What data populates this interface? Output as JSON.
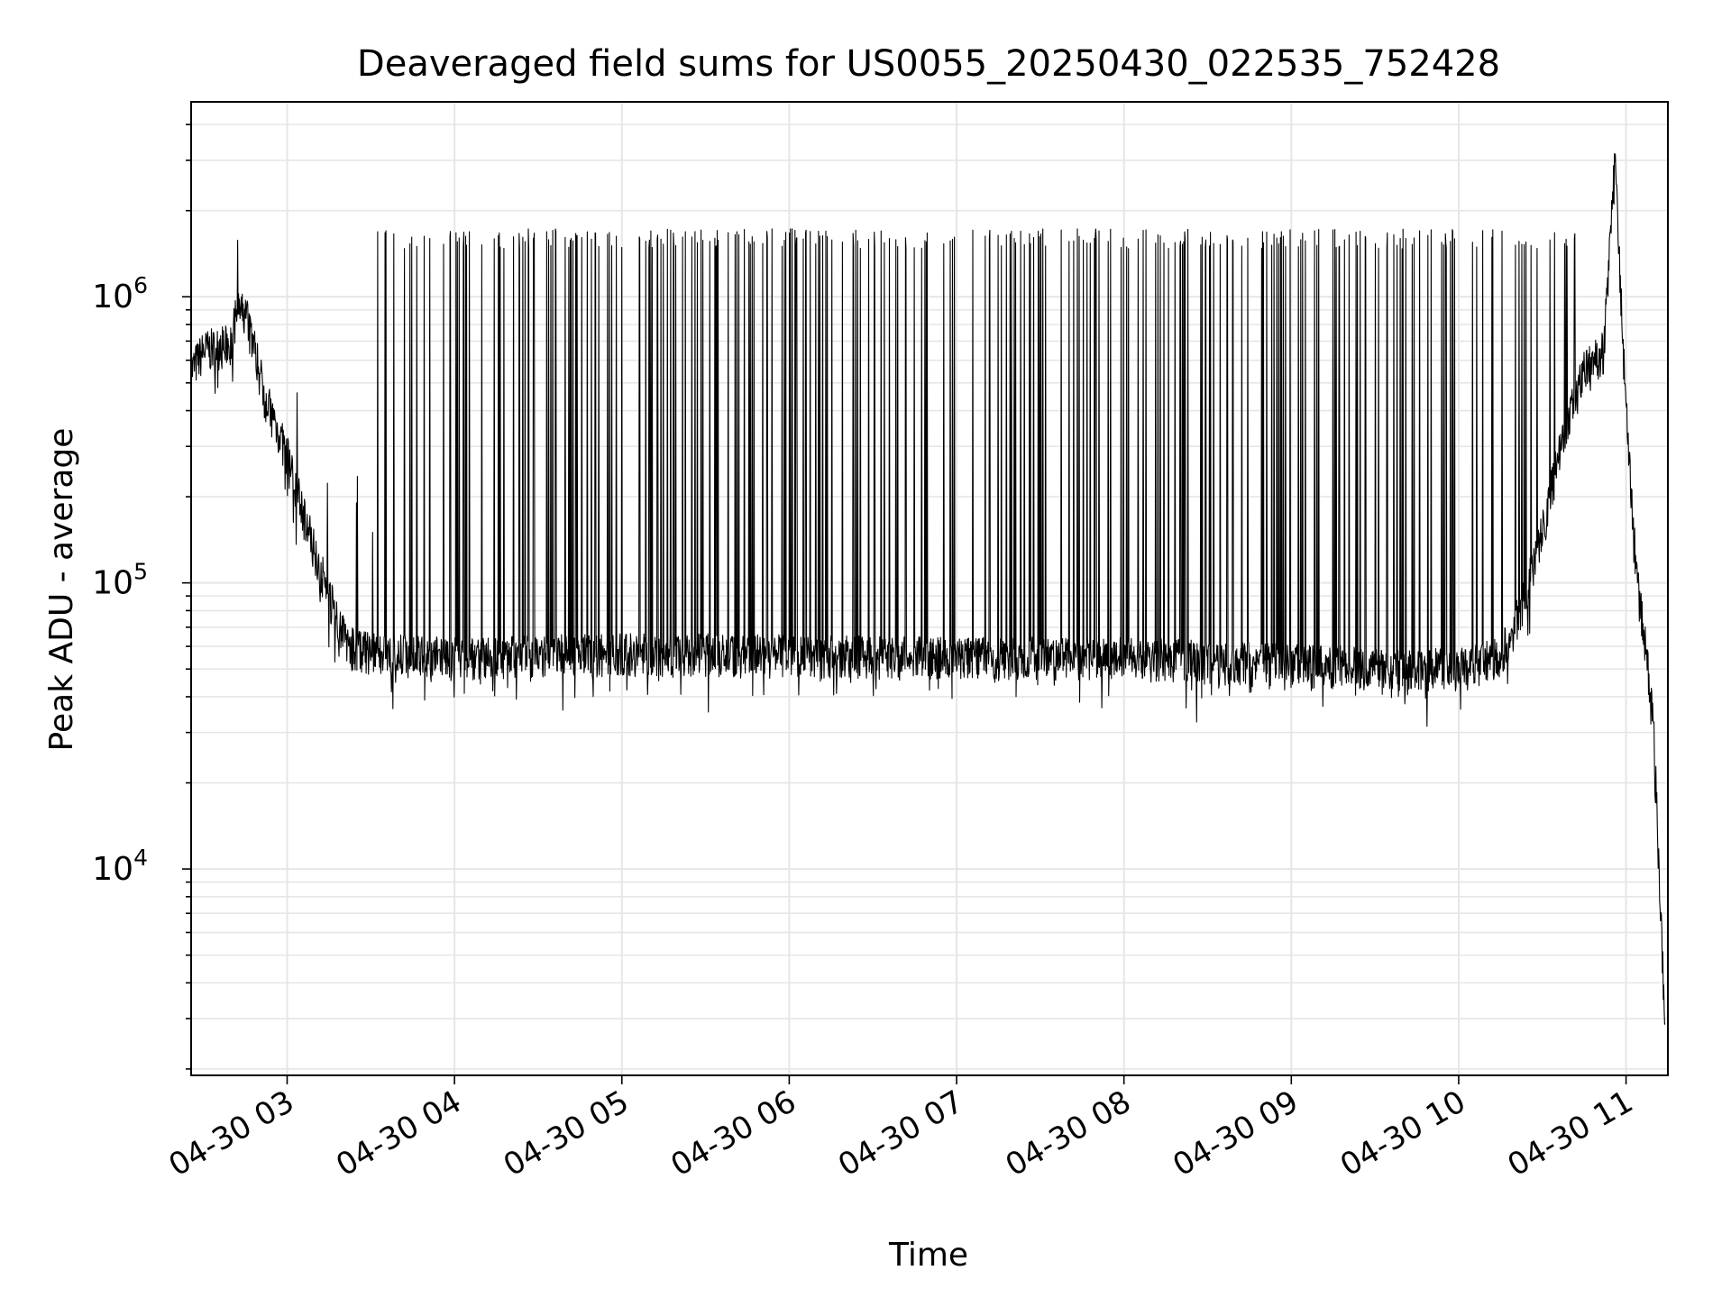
{
  "chart_data": {
    "type": "line",
    "title": "Deaveraged field sums for US0055_20250430_022535_752428",
    "xlabel": "Time",
    "ylabel": "Peak ADU - average",
    "yscale": "log",
    "ylim": [
      1900,
      4800000
    ],
    "xlim": [
      "2025-04-30T02:25:35",
      "2025-04-30T11:15:00"
    ],
    "x_ticks": [
      "2025-04-30T03:00",
      "2025-04-30T04:00",
      "2025-04-30T05:00",
      "2025-04-30T06:00",
      "2025-04-30T07:00",
      "2025-04-30T08:00",
      "2025-04-30T09:00",
      "2025-04-30T10:00",
      "2025-04-30T11:00"
    ],
    "x_tick_labels": [
      "04-30 03",
      "04-30 04",
      "04-30 05",
      "04-30 06",
      "04-30 07",
      "04-30 08",
      "04-30 09",
      "04-30 10",
      "04-30 11"
    ],
    "y_ticks": [
      10000,
      100000,
      1000000
    ],
    "y_tick_labels": [
      {
        "base": "10",
        "exp": "4"
      },
      {
        "base": "10",
        "exp": "5"
      },
      {
        "base": "10",
        "exp": "6"
      }
    ],
    "grid": true,
    "line_color": "#000000",
    "grid_color": "#e6e6e6",
    "baseline": [
      [
        "2025-04-30T02:25:35",
        550000
      ],
      [
        "2025-04-30T02:30",
        650000
      ],
      [
        "2025-04-30T02:40",
        680000
      ],
      [
        "2025-04-30T02:42",
        900000
      ],
      [
        "2025-04-30T02:46",
        850000
      ],
      [
        "2025-04-30T02:52",
        450000
      ],
      [
        "2025-04-30T03:00",
        280000
      ],
      [
        "2025-04-30T03:08",
        150000
      ],
      [
        "2025-04-30T03:15",
        90000
      ],
      [
        "2025-04-30T03:22",
        60000
      ],
      [
        "2025-04-30T03:30",
        57000
      ],
      [
        "2025-04-30T04:00",
        55000
      ],
      [
        "2025-04-30T05:00",
        57000
      ],
      [
        "2025-04-30T06:00",
        56000
      ],
      [
        "2025-04-30T07:00",
        55000
      ],
      [
        "2025-04-30T08:00",
        55000
      ],
      [
        "2025-04-30T09:00",
        52000
      ],
      [
        "2025-04-30T10:00",
        50000
      ],
      [
        "2025-04-30T10:15",
        55000
      ],
      [
        "2025-04-30T10:22",
        80000
      ],
      [
        "2025-04-30T10:30",
        150000
      ],
      [
        "2025-04-30T10:38",
        350000
      ],
      [
        "2025-04-30T10:45",
        550000
      ],
      [
        "2025-04-30T10:52",
        650000
      ],
      [
        "2025-04-30T10:56",
        3000000
      ],
      [
        "2025-04-30T10:58",
        1100000
      ],
      [
        "2025-04-30T11:00",
        400000
      ],
      [
        "2025-04-30T11:04",
        100000
      ],
      [
        "2025-04-30T11:07",
        60000
      ],
      [
        "2025-04-30T11:10",
        30000
      ],
      [
        "2025-04-30T11:13",
        5000
      ],
      [
        "2025-04-30T11:14",
        2500
      ]
    ],
    "noise_dips": 0.3,
    "spike_peak": 1600000,
    "spikes_from": "2025-04-30T03:32",
    "spikes_to": "2025-04-30T10:45"
  }
}
